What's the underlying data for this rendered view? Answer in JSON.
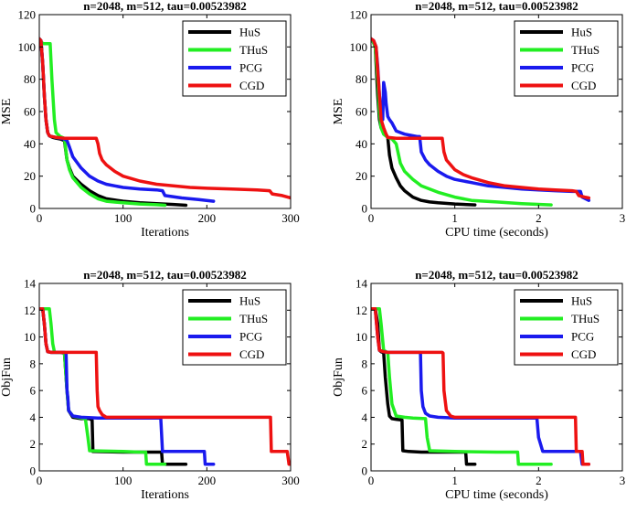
{
  "colors": {
    "HuS": "#000000",
    "THuS": "#22ee22",
    "PCG": "#1a1aee",
    "CGD": "#ee1111"
  },
  "chart_data": [
    {
      "type": "line",
      "title": "n=2048, m=512, tau=0.00523982",
      "xlabel": "Iterations",
      "ylabel": "MSE",
      "xlim": [
        0,
        300
      ],
      "ylim": [
        0,
        120
      ],
      "xticks": [
        "0",
        "100",
        "200",
        "300"
      ],
      "yticks": [
        "0",
        "20",
        "40",
        "60",
        "80",
        "100",
        "120"
      ],
      "legend_position": "top-right",
      "series": [
        {
          "name": "HuS",
          "x": [
            0,
            2,
            4,
            6,
            8,
            10,
            12,
            14,
            16,
            20,
            25,
            30,
            33,
            36,
            40,
            50,
            60,
            70,
            80,
            100,
            120,
            140,
            160,
            175
          ],
          "y": [
            105,
            104,
            90,
            70,
            55,
            47,
            45,
            44.5,
            44,
            43.5,
            43,
            42,
            30,
            25,
            20,
            15,
            11,
            8,
            6,
            4.5,
            3.5,
            3,
            2.5,
            2
          ]
        },
        {
          "name": "THuS",
          "x": [
            0,
            2,
            5,
            10,
            13,
            15,
            18,
            20,
            25,
            30,
            33,
            36,
            40,
            50,
            60,
            70,
            80,
            100,
            120,
            140,
            150
          ],
          "y": [
            103,
            103,
            102,
            102,
            102,
            80,
            55,
            47,
            44.5,
            43.5,
            30,
            24,
            19,
            13,
            9,
            6,
            4.5,
            3.5,
            2.8,
            2.3,
            2
          ]
        },
        {
          "name": "PCG",
          "x": [
            0,
            2,
            4,
            6,
            8,
            10,
            12,
            15,
            20,
            25,
            30,
            33,
            36,
            40,
            50,
            60,
            70,
            80,
            100,
            120,
            140,
            147,
            150,
            170,
            190,
            208
          ],
          "y": [
            105,
            104,
            90,
            70,
            55,
            47,
            45,
            44.5,
            44,
            43.5,
            43,
            42,
            38,
            32,
            25,
            20,
            17,
            15,
            13,
            12,
            11.5,
            11,
            8,
            6.5,
            5.5,
            4.5
          ]
        },
        {
          "name": "CGD",
          "x": [
            0,
            2,
            4,
            6,
            8,
            10,
            12,
            15,
            20,
            30,
            40,
            50,
            60,
            68,
            70,
            72,
            75,
            80,
            90,
            100,
            120,
            140,
            160,
            180,
            200,
            230,
            260,
            275,
            278,
            290,
            300
          ],
          "y": [
            105,
            104,
            90,
            70,
            55,
            47,
            45,
            44.5,
            44,
            43.5,
            43.5,
            43.5,
            43.5,
            43.5,
            40,
            34,
            30,
            27,
            23,
            20,
            17,
            15,
            14,
            13,
            12.5,
            12,
            11.5,
            11,
            9,
            8,
            6.5
          ]
        }
      ]
    },
    {
      "type": "line",
      "title": "n=2048, m=512, tau=0.00523982",
      "xlabel": "CPU time (seconds)",
      "ylabel": "MSE",
      "xlim": [
        0,
        3
      ],
      "ylim": [
        0,
        120
      ],
      "xticks": [
        "0",
        "1",
        "2",
        "3"
      ],
      "yticks": [
        "0",
        "20",
        "40",
        "60",
        "80",
        "100",
        "120"
      ],
      "legend_position": "top-right",
      "series": [
        {
          "name": "HuS",
          "x": [
            0,
            0.02,
            0.05,
            0.08,
            0.1,
            0.12,
            0.15,
            0.18,
            0.2,
            0.22,
            0.25,
            0.3,
            0.35,
            0.4,
            0.5,
            0.6,
            0.7,
            0.8,
            1.0,
            1.24
          ],
          "y": [
            105,
            104,
            100,
            70,
            55,
            50,
            47,
            45,
            44,
            33,
            25,
            19,
            14,
            11,
            7,
            5,
            4,
            3.5,
            2.8,
            2.2
          ]
        },
        {
          "name": "THuS",
          "x": [
            0,
            0.02,
            0.05,
            0.08,
            0.1,
            0.12,
            0.15,
            0.2,
            0.25,
            0.3,
            0.35,
            0.4,
            0.5,
            0.6,
            0.8,
            1.0,
            1.2,
            1.5,
            1.8,
            2.15
          ],
          "y": [
            105,
            104,
            100,
            80,
            60,
            50,
            46,
            44,
            43,
            40,
            28,
            23,
            18,
            14,
            10,
            7,
            5,
            4,
            3,
            2.2
          ]
        },
        {
          "name": "PCG",
          "x": [
            0,
            0.03,
            0.06,
            0.08,
            0.1,
            0.12,
            0.14,
            0.15,
            0.17,
            0.18,
            0.2,
            0.22,
            0.25,
            0.3,
            0.35,
            0.4,
            0.5,
            0.55,
            0.58,
            0.6,
            0.65,
            0.7,
            0.8,
            0.9,
            1.0,
            1.2,
            1.4,
            1.6,
            1.8,
            2.0,
            2.2,
            2.4,
            2.5,
            2.52,
            2.6
          ],
          "y": [
            105,
            104,
            100,
            88,
            70,
            60,
            55,
            78,
            72,
            65,
            57,
            55,
            53,
            48,
            47,
            46,
            45,
            44.5,
            44.5,
            35,
            30,
            27,
            23,
            20,
            18,
            16,
            14,
            13,
            12,
            11.5,
            11,
            10.5,
            10.5,
            7,
            5
          ]
        },
        {
          "name": "CGD",
          "x": [
            0,
            0.03,
            0.06,
            0.1,
            0.12,
            0.15,
            0.18,
            0.2,
            0.3,
            0.5,
            0.7,
            0.85,
            0.87,
            0.9,
            0.95,
            1.0,
            1.1,
            1.2,
            1.4,
            1.6,
            1.8,
            2.0,
            2.2,
            2.4,
            2.45,
            2.48,
            2.55,
            2.6
          ],
          "y": [
            105,
            104,
            100,
            70,
            55,
            50,
            46,
            44,
            43.5,
            43.5,
            43.5,
            43.5,
            35,
            30,
            27,
            24,
            21,
            19,
            16,
            14,
            13,
            12,
            11.5,
            11,
            10.5,
            8,
            7,
            6.5
          ]
        }
      ]
    },
    {
      "type": "line",
      "title": "n=2048, m=512, tau=0.00523982",
      "xlabel": "Iterations",
      "ylabel": "ObjFun",
      "xlim": [
        0,
        300
      ],
      "ylim": [
        0,
        14
      ],
      "xticks": [
        "0",
        "100",
        "200",
        "300"
      ],
      "yticks": [
        "0",
        "2",
        "4",
        "6",
        "8",
        "10",
        "12",
        "14"
      ],
      "legend_position": "top-right",
      "series": [
        {
          "name": "HuS",
          "x": [
            0,
            4,
            6,
            8,
            10,
            14,
            25,
            30,
            33,
            35,
            40,
            50,
            60,
            63,
            64,
            100,
            130,
            140,
            146,
            147,
            175
          ],
          "y": [
            12.1,
            12.1,
            11,
            9.5,
            8.9,
            8.85,
            8.85,
            8.8,
            6,
            4.5,
            4,
            3.9,
            3.9,
            3.8,
            1.45,
            1.4,
            1.4,
            1.4,
            1.4,
            0.5,
            0.5
          ]
        },
        {
          "name": "THuS",
          "x": [
            0,
            12,
            14,
            16,
            18,
            20,
            30,
            33,
            35,
            40,
            50,
            55,
            58,
            60,
            100,
            120,
            127,
            128,
            150
          ],
          "y": [
            12.1,
            12.1,
            11,
            9.5,
            8.9,
            8.85,
            8.85,
            6,
            4.5,
            4.1,
            3.95,
            3.9,
            2.5,
            1.5,
            1.45,
            1.4,
            1.4,
            0.5,
            0.5
          ]
        },
        {
          "name": "PCG",
          "x": [
            0,
            4,
            6,
            8,
            10,
            14,
            30,
            32,
            33,
            34,
            35,
            40,
            50,
            70,
            100,
            145,
            147,
            148,
            190,
            197,
            198,
            208
          ],
          "y": [
            12.1,
            12.1,
            11,
            9.5,
            8.9,
            8.85,
            8.85,
            8.8,
            6,
            5.5,
            4.5,
            4.1,
            4,
            3.95,
            3.95,
            3.95,
            1.45,
            1.45,
            1.45,
            1.45,
            0.5,
            0.5
          ]
        },
        {
          "name": "CGD",
          "x": [
            0,
            4,
            6,
            8,
            10,
            14,
            50,
            68,
            69,
            70,
            72,
            75,
            80,
            100,
            150,
            200,
            270,
            276,
            277,
            290,
            296,
            298,
            300
          ],
          "y": [
            12.1,
            12.1,
            11,
            9.5,
            8.9,
            8.85,
            8.85,
            8.85,
            6,
            4.8,
            4.5,
            4.2,
            4,
            4,
            4,
            4,
            4,
            4,
            1.45,
            1.45,
            1.45,
            0.5,
            0.5
          ]
        }
      ]
    },
    {
      "type": "line",
      "title": "n=2048, m=512, tau=0.00523982",
      "xlabel": "CPU time (seconds)",
      "ylabel": "ObjFun",
      "xlim": [
        0,
        3
      ],
      "ylim": [
        0,
        14
      ],
      "xticks": [
        "0",
        "1",
        "2",
        "3"
      ],
      "yticks": [
        "0",
        "2",
        "4",
        "6",
        "8",
        "10",
        "12",
        "14"
      ],
      "legend_position": "top-right",
      "series": [
        {
          "name": "HuS",
          "x": [
            0,
            0.05,
            0.08,
            0.1,
            0.12,
            0.14,
            0.15,
            0.17,
            0.2,
            0.22,
            0.25,
            0.3,
            0.37,
            0.38,
            0.45,
            0.6,
            0.8,
            1.0,
            1.13,
            1.14,
            1.24
          ],
          "y": [
            12.1,
            12.1,
            11,
            9,
            8.9,
            8.85,
            8.85,
            7,
            5,
            4.1,
            3.9,
            3.85,
            3.8,
            1.5,
            1.45,
            1.4,
            1.4,
            1.4,
            1.4,
            0.5,
            0.5
          ]
        },
        {
          "name": "THuS",
          "x": [
            0,
            0.05,
            0.1,
            0.12,
            0.15,
            0.18,
            0.2,
            0.22,
            0.25,
            0.3,
            0.4,
            0.5,
            0.65,
            0.67,
            0.7,
            1.0,
            1.5,
            1.75,
            1.76,
            2.15
          ],
          "y": [
            12.1,
            12.1,
            12.1,
            11,
            9,
            8.9,
            8.85,
            7,
            5,
            4.1,
            4,
            3.95,
            3.9,
            2.5,
            1.5,
            1.45,
            1.4,
            1.4,
            0.5,
            0.5
          ]
        },
        {
          "name": "PCG",
          "x": [
            0,
            0.05,
            0.08,
            0.1,
            0.15,
            0.2,
            0.3,
            0.5,
            0.58,
            0.59,
            0.6,
            0.62,
            0.65,
            0.7,
            0.8,
            1.0,
            1.5,
            1.98,
            2.0,
            2.05,
            2.5,
            2.52,
            2.6
          ],
          "y": [
            12.1,
            12.1,
            10,
            9,
            8.9,
            8.85,
            8.85,
            8.85,
            8.85,
            8.8,
            6,
            4.8,
            4.3,
            4.1,
            4,
            3.95,
            3.95,
            3.95,
            2.5,
            1.45,
            1.45,
            0.5,
            0.5
          ]
        },
        {
          "name": "CGD",
          "x": [
            0,
            0.05,
            0.08,
            0.1,
            0.15,
            0.2,
            0.4,
            0.6,
            0.85,
            0.86,
            0.87,
            0.9,
            0.95,
            1.0,
            1.5,
            2.0,
            2.44,
            2.45,
            2.52,
            2.53,
            2.6
          ],
          "y": [
            12.1,
            12.1,
            10,
            9,
            8.9,
            8.85,
            8.85,
            8.85,
            8.85,
            8.8,
            6,
            4.5,
            4.1,
            4,
            4,
            4,
            4,
            1.45,
            1.45,
            0.5,
            0.5
          ]
        }
      ]
    }
  ]
}
